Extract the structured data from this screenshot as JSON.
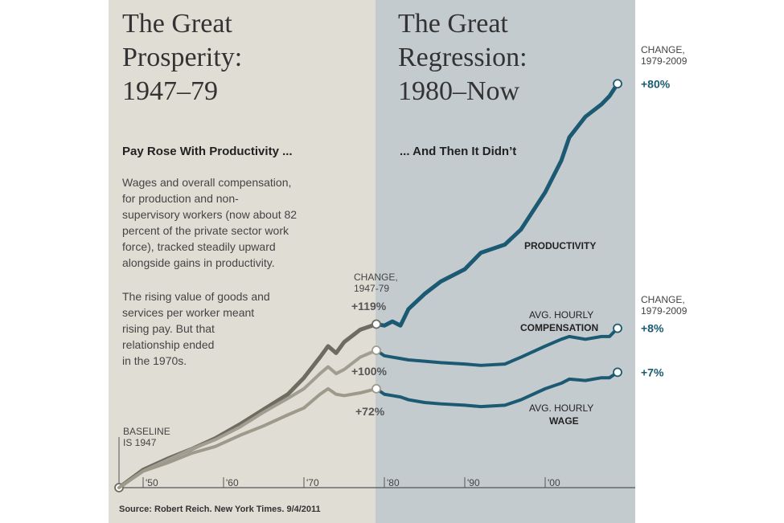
{
  "chart_data": {
    "type": "line",
    "titles": [
      [
        "The Great",
        "Prosperity:",
        "1947–79"
      ],
      [
        "The Great",
        "Regression:",
        "1980–Now"
      ]
    ],
    "subtitles": [
      "Pay Rose With Productivity ...",
      "... And Then It Didn’t"
    ],
    "paragraphs": [
      [
        "Wages and overall compensation,",
        "for production and non-",
        "supervisory workers (now about 82",
        "percent of the private sector work",
        "force), tracked steadily upward",
        "alongside gains in productivity."
      ],
      [
        "The rising value of goods and",
        "services per worker meant",
        "rising pay. But that",
        "relationship ended",
        "in the 1970s."
      ]
    ],
    "baseline_note": [
      "BASELINE",
      "IS 1947"
    ],
    "change_headings": [
      [
        "CHANGE,",
        "1947-79"
      ],
      [
        "CHANGE,",
        "1979-2009"
      ],
      [
        "CHANGE,",
        "1979-2009"
      ]
    ],
    "source": "Source: Robert Reich. New York Times. 9/4/2011",
    "period_split": 1979,
    "x": [
      1947,
      1950,
      1953,
      1956,
      1959,
      1962,
      1965,
      1968,
      1970,
      1972,
      1973,
      1974,
      1975,
      1977,
      1979,
      1980,
      1981,
      1982,
      1983,
      1985,
      1987,
      1990,
      1992,
      1995,
      1997,
      2000,
      2002,
      2003,
      2005,
      2007,
      2008,
      2009
    ],
    "series": [
      {
        "name": [
          "PRODUCTIVITY"
        ],
        "early_color": "#6e6c61",
        "color": "#1b5a72",
        "values": [
          0,
          13,
          21,
          28,
          36,
          46,
          57,
          68,
          80,
          95,
          103,
          98,
          106,
          115,
          119,
          118,
          121,
          118,
          130,
          141,
          150,
          159,
          171,
          177,
          188,
          215,
          238,
          255,
          270,
          279,
          285,
          294
        ],
        "change_labels": [
          "+119%",
          "+80%"
        ]
      },
      {
        "name": [
          "AVG. HOURLY",
          "COMPENSATION"
        ],
        "early_color": "#a19e91",
        "color": "#1b5a72",
        "values": [
          0,
          12,
          20,
          28,
          35,
          44,
          55,
          65,
          72,
          83,
          88,
          83,
          86,
          95,
          100,
          96,
          95,
          94,
          93,
          92,
          91,
          90,
          89,
          90,
          95,
          103,
          108,
          110,
          108,
          110,
          110,
          116
        ],
        "change_labels": [
          "+100%",
          "+8%"
        ]
      },
      {
        "name": [
          "AVG. HOURLY",
          "WAGE"
        ],
        "early_color": "#9d9a8c",
        "color": "#1b5a72",
        "values": [
          0,
          12,
          18,
          25,
          30,
          38,
          45,
          53,
          58,
          68,
          72,
          68,
          67,
          69,
          72,
          68,
          67,
          66,
          64,
          62,
          61,
          60,
          59,
          60,
          64,
          72,
          76,
          79,
          78,
          80,
          80,
          84
        ],
        "change_labels": [
          "+72%",
          "+7%"
        ]
      }
    ],
    "xlim": [
      1947,
      2009
    ],
    "xticks": [
      {
        "value": 1950,
        "label": "'50"
      },
      {
        "value": 1960,
        "label": "'60"
      },
      {
        "value": 1970,
        "label": "'70"
      },
      {
        "value": 1980,
        "label": "'80"
      },
      {
        "value": 1990,
        "label": "'90"
      },
      {
        "value": 2000,
        "label": "'00"
      }
    ],
    "ylim": [
      0,
      300
    ]
  }
}
